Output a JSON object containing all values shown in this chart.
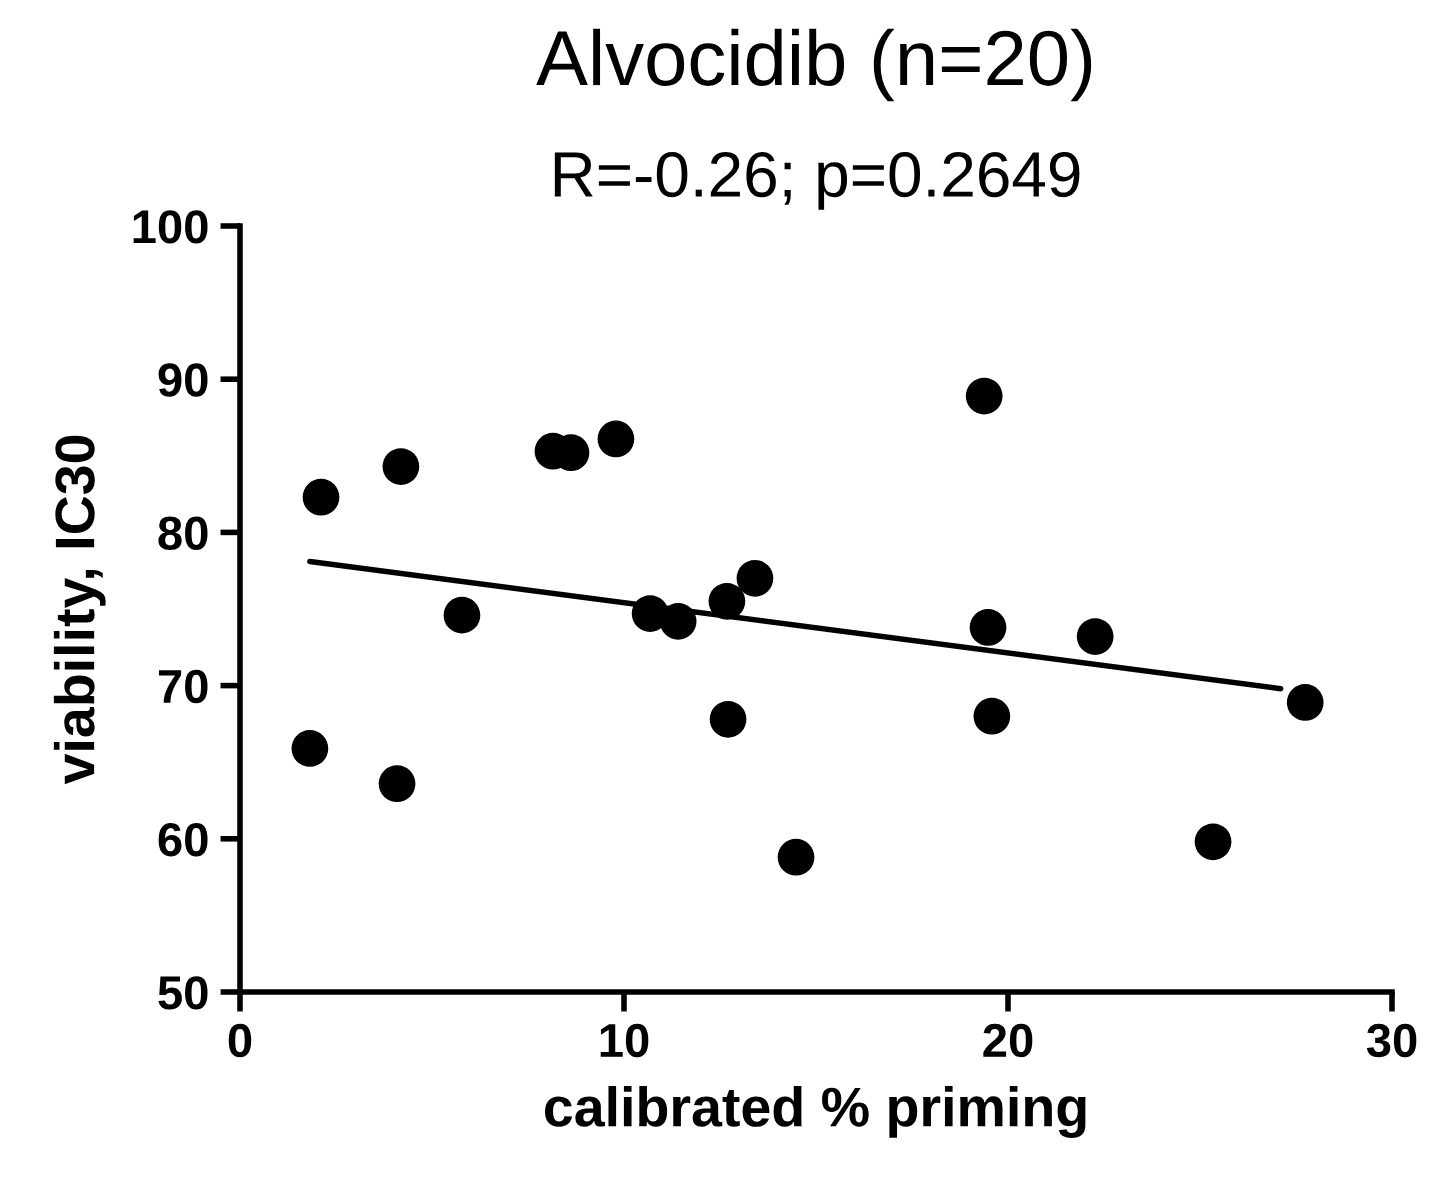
{
  "chart_data": {
    "type": "scatter",
    "title": "Alvocidib (n=20)",
    "subtitle": "R=-0.26; p=0.2649",
    "xlabel": "calibrated % priming",
    "ylabel": "viability, IC30",
    "xlim": [
      0,
      30
    ],
    "xticks": [
      0,
      10,
      20,
      30
    ],
    "ylim": [
      50,
      100
    ],
    "yticks": [
      50,
      60,
      70,
      80,
      90,
      100
    ],
    "grid": false,
    "series": [
      {
        "marker": "circle",
        "color": "#000000",
        "x": [
          1.82,
          2.11,
          4.19,
          4.09,
          5.78,
          8.15,
          8.62,
          9.79,
          10.68,
          11.41,
          12.68,
          12.71,
          13.41,
          14.48,
          19.38,
          19.48,
          19.58,
          22.27,
          25.34,
          27.74
        ],
        "values": [
          65.9,
          82.3,
          84.3,
          63.6,
          74.6,
          85.3,
          85.2,
          86.1,
          74.7,
          74.2,
          75.5,
          67.8,
          77.0,
          58.8,
          88.9,
          73.8,
          68.0,
          73.2,
          59.8,
          68.9
        ]
      },
      {
        "type": "line",
        "color": "#000000",
        "x": [
          1.82,
          27.1
        ],
        "values": [
          78.1,
          69.8
        ]
      }
    ]
  }
}
